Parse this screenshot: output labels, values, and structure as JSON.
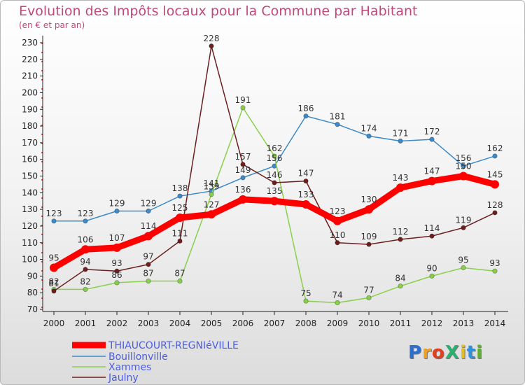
{
  "title": "Evolution des Impôts locaux pour la Commune par Habitant",
  "subtitle": "(en € et par an)",
  "logo_text": "ProXiti",
  "chart_data": {
    "type": "line",
    "x": [
      2000,
      2001,
      2002,
      2003,
      2004,
      2005,
      2006,
      2007,
      2008,
      2009,
      2010,
      2011,
      2012,
      2013,
      2014
    ],
    "ylim": [
      70,
      230
    ],
    "yticks": [
      70,
      80,
      90,
      100,
      110,
      120,
      130,
      140,
      150,
      160,
      170,
      180,
      190,
      200,
      210,
      220,
      230
    ],
    "grid": false,
    "legend": "bottom-left",
    "series": [
      {
        "name": "THIAUCOURT-REGNIéVILLE",
        "color": "#ff0000",
        "values": [
          95,
          106,
          107,
          114,
          125,
          127,
          136,
          135,
          133,
          123,
          130,
          143,
          147,
          150,
          145
        ]
      },
      {
        "name": "Bouillonville",
        "color": "#3c8ac9",
        "values": [
          123,
          123,
          129,
          129,
          138,
          141,
          149,
          156,
          186,
          181,
          174,
          171,
          172,
          156,
          162
        ]
      },
      {
        "name": "Xammes",
        "color": "#88d04a",
        "values": [
          82,
          82,
          86,
          87,
          87,
          139,
          191,
          162,
          75,
          74,
          77,
          84,
          90,
          95,
          93
        ]
      },
      {
        "name": "Jaulny",
        "color": "#6d1f1f",
        "values": [
          81,
          94,
          93,
          97,
          111,
          228,
          157,
          146,
          147,
          110,
          109,
          112,
          114,
          119,
          128
        ]
      }
    ]
  }
}
